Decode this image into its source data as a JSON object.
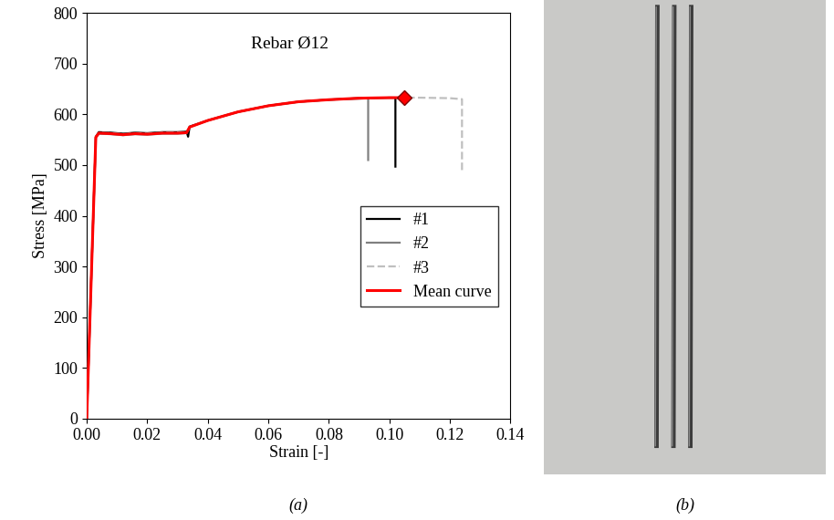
{
  "chart_data": {
    "type": "line",
    "title": "Rebar Ø12",
    "x_label": "Strain [-]",
    "y_label": "Stress [MPa]",
    "xlim": [
      0,
      0.14
    ],
    "xticks": [
      {
        "value": 0,
        "label": "0.00"
      },
      {
        "value": 0.02,
        "label": "0.02"
      },
      {
        "value": 0.04,
        "label": "0.04"
      },
      {
        "value": 0.06,
        "label": "0.06"
      },
      {
        "value": 0.08,
        "label": "0.08"
      },
      {
        "value": 0.1,
        "label": "0.10"
      },
      {
        "value": 0.12,
        "label": "0.12"
      },
      {
        "value": 0.14,
        "label": "0.14"
      }
    ],
    "ylim": [
      0,
      800
    ],
    "yticks": [
      0,
      100,
      200,
      300,
      400,
      500,
      600,
      700,
      800
    ],
    "grid": false,
    "legend": "center right",
    "series": [
      {
        "name": "#1",
        "color": "#000000",
        "line_style": "solid",
        "x": [
          0,
          0.003,
          0.004,
          0.008,
          0.012,
          0.016,
          0.02,
          0.025,
          0.03,
          0.033,
          0.0335,
          0.034,
          0.04,
          0.05,
          0.06,
          0.07,
          0.08,
          0.09,
          0.1,
          0.102,
          0.102
        ],
        "values": [
          0,
          556,
          565,
          564,
          562,
          564,
          563,
          565,
          565,
          566,
          556,
          576,
          588,
          605,
          617,
          625,
          629,
          632,
          633,
          633,
          497
        ]
      },
      {
        "name": "#2",
        "color": "#808080",
        "line_style": "solid",
        "x": [
          0,
          0.003,
          0.004,
          0.008,
          0.012,
          0.016,
          0.02,
          0.025,
          0.03,
          0.033,
          0.034,
          0.04,
          0.05,
          0.06,
          0.07,
          0.08,
          0.09,
          0.093,
          0.093
        ],
        "values": [
          0,
          554,
          562,
          561,
          559,
          561,
          560,
          562,
          562,
          563,
          575,
          588,
          605,
          617,
          625,
          629,
          631,
          632,
          510
        ]
      },
      {
        "name": "#3",
        "color": "#bfbfbf",
        "line_style": "dashed",
        "x": [
          0,
          0.003,
          0.004,
          0.008,
          0.012,
          0.016,
          0.02,
          0.025,
          0.03,
          0.033,
          0.034,
          0.04,
          0.05,
          0.06,
          0.07,
          0.08,
          0.09,
          0.1,
          0.11,
          0.12,
          0.124,
          0.124
        ],
        "values": [
          0,
          555,
          564,
          563,
          561,
          563,
          562,
          564,
          564,
          565,
          575,
          588,
          605,
          617,
          625,
          629,
          632,
          633,
          633,
          632,
          630,
          490
        ]
      },
      {
        "name": "Mean curve",
        "color": "#ff0000",
        "line_style": "solid",
        "marker": "diamond",
        "x": [
          0,
          0.003,
          0.004,
          0.008,
          0.012,
          0.016,
          0.02,
          0.025,
          0.03,
          0.033,
          0.034,
          0.04,
          0.05,
          0.06,
          0.07,
          0.08,
          0.09,
          0.1,
          0.105
        ],
        "values": [
          0,
          555,
          563,
          562,
          560,
          562,
          561,
          563,
          563,
          564,
          575,
          588,
          605,
          617,
          625,
          629,
          632,
          633,
          633
        ]
      }
    ]
  },
  "panel_labels": [
    "(a)",
    "(b)"
  ]
}
